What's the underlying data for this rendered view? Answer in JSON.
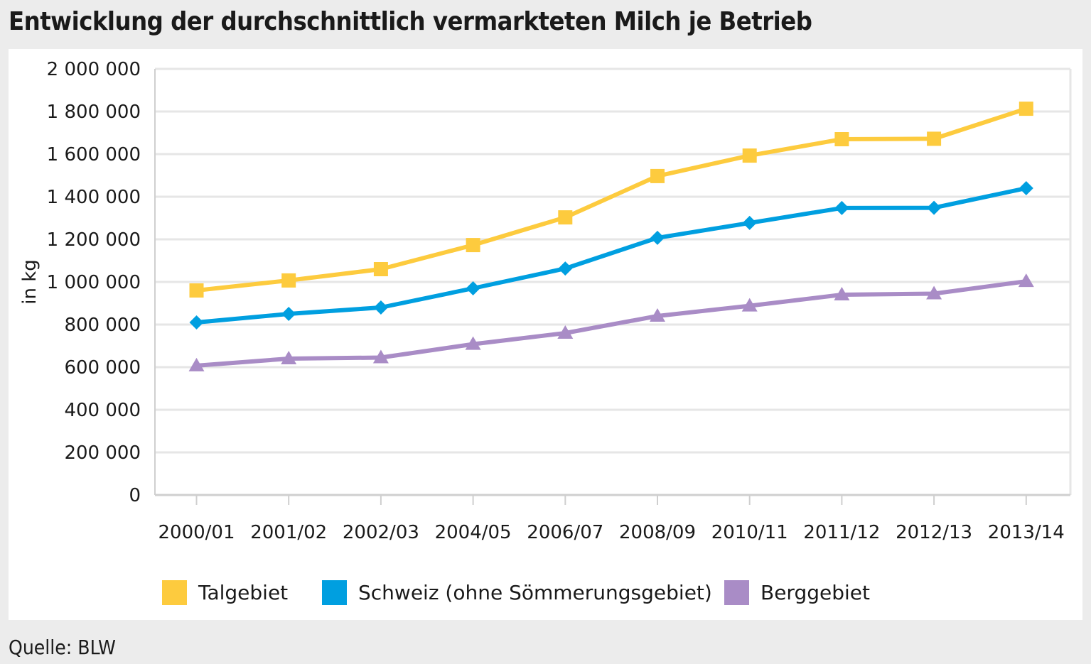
{
  "title": "Entwicklung der durchschnittlich vermarkteten Milch je Betrieb",
  "source": "Quelle: BLW",
  "colors": {
    "talgebiet": "#fdcb3e",
    "schweiz": "#009fe0",
    "berggebiet": "#a98cc6",
    "grid": "#e6e6e6",
    "axis": "#cfcfcf"
  },
  "chart_data": {
    "type": "line",
    "ylabel": "in kg",
    "xlabel": "",
    "ylim": [
      0,
      2000000
    ],
    "yticks": [
      0,
      200000,
      400000,
      600000,
      800000,
      1000000,
      1200000,
      1400000,
      1600000,
      1800000,
      2000000
    ],
    "ytick_labels": [
      "0",
      "200 000",
      "400 000",
      "600 000",
      "800 000",
      "1 000 000",
      "1 200 000",
      "1 400 000",
      "1 600 000",
      "1 800 000",
      "2 000 000"
    ],
    "grid": true,
    "legend_position": "bottom",
    "categories": [
      "2000/01",
      "2001/02",
      "2002/03",
      "2004/05",
      "2006/07",
      "2008/09",
      "2010/11",
      "2011/12",
      "2012/13",
      "2013/14"
    ],
    "series": [
      {
        "name": "Talgebiet",
        "marker": "square",
        "color_key": "talgebiet",
        "values": [
          960000,
          1007000,
          1060000,
          1173000,
          1303000,
          1497000,
          1593000,
          1670000,
          1672000,
          1813000
        ]
      },
      {
        "name": "Schweiz (ohne Sömmerungsgebiet)",
        "marker": "diamond",
        "color_key": "schweiz",
        "values": [
          810000,
          850000,
          880000,
          970000,
          1063000,
          1207000,
          1277000,
          1347000,
          1348000,
          1440000
        ]
      },
      {
        "name": "Berggebiet",
        "marker": "triangle",
        "color_key": "berggebiet",
        "values": [
          607000,
          640000,
          645000,
          708000,
          760000,
          840000,
          888000,
          940000,
          945000,
          1003000
        ]
      }
    ]
  }
}
